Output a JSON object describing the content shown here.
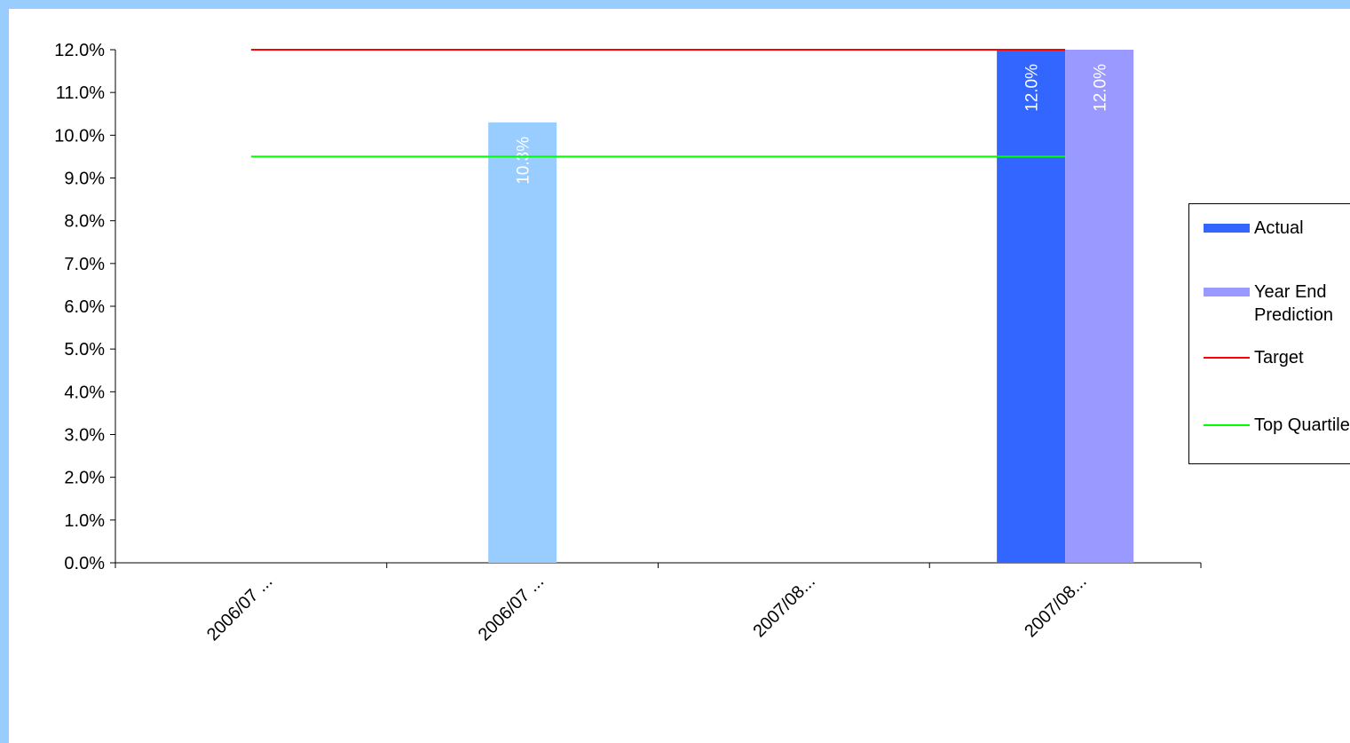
{
  "chart_data": {
    "type": "bar",
    "categories": [
      "2006/07 ...",
      "2006/07 ...",
      "2007/08...",
      "2007/08..."
    ],
    "ylim": [
      0,
      12
    ],
    "yticks": [
      "0.0%",
      "1.0%",
      "2.0%",
      "3.0%",
      "4.0%",
      "5.0%",
      "6.0%",
      "7.0%",
      "8.0%",
      "9.0%",
      "10.0%",
      "11.0%",
      "12.0%"
    ],
    "bars": [
      {
        "category_index": 1,
        "value": 10.3,
        "label": "10.3%",
        "color": "#99ccff",
        "series": "none"
      },
      {
        "category_index": 3,
        "value": 12.0,
        "label": "12.0%",
        "color": "#3366ff",
        "series": "Actual"
      },
      {
        "category_index": 3,
        "value": 12.0,
        "label": "12.0%",
        "color": "#9999ff",
        "series": "Year End Prediction"
      }
    ],
    "lines": [
      {
        "name": "Target",
        "value": 12.0,
        "color": "#ff0000"
      },
      {
        "name": "Top Quartile",
        "value": 9.5,
        "color": "#00ff00"
      }
    ],
    "grid": false,
    "legend_position": "right"
  },
  "legend": [
    {
      "label": "Actual",
      "kind": "bar",
      "color": "#3366ff"
    },
    {
      "label": "Year End\nPrediction",
      "kind": "bar",
      "color": "#9999ff"
    },
    {
      "label": "Target",
      "kind": "line",
      "color": "#ff0000"
    },
    {
      "label": "Top Quartile",
      "kind": "line",
      "color": "#00ff00"
    }
  ]
}
